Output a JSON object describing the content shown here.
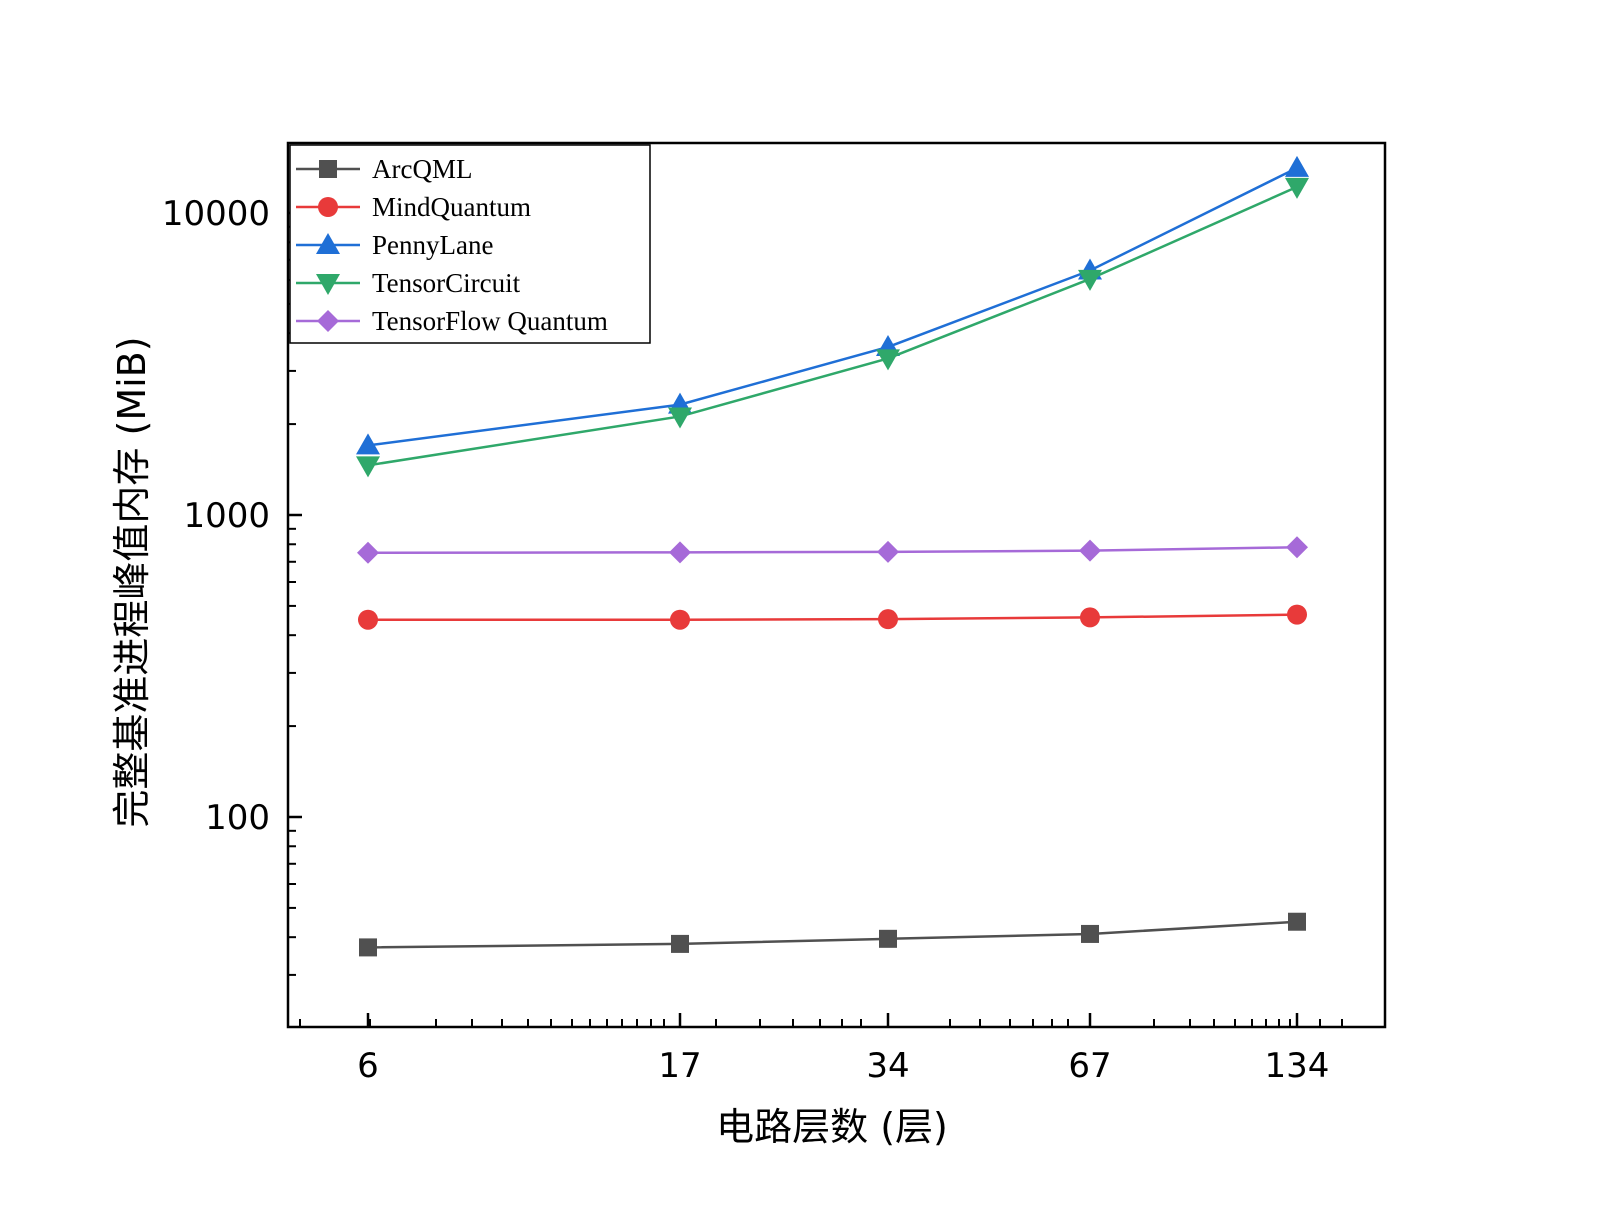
{
  "chart_data": {
    "type": "line",
    "xlabel": "电路层数 (层)",
    "ylabel": "完整基准进程峰值内存 (MiB)",
    "x_scale": "log",
    "y_scale": "log",
    "x_ticks": [
      "6",
      "17",
      "34",
      "67",
      "134"
    ],
    "y_ticks": [
      "100",
      "1000",
      "10000"
    ],
    "ylim": [
      27,
      18000
    ],
    "grid": false,
    "legend_position": "top-left",
    "series": [
      {
        "name": "ArcQML",
        "marker": "square",
        "color": "#505050",
        "values": [
          37,
          38,
          39.5,
          41,
          45
        ]
      },
      {
        "name": "MindQuantum",
        "marker": "circle",
        "color": "#e83a3a",
        "values": [
          450,
          450,
          452,
          458,
          468
        ]
      },
      {
        "name": "PennyLane",
        "marker": "triangle-up",
        "color": "#1f6fd6",
        "values": [
          1700,
          2320,
          3600,
          6450,
          14100
        ]
      },
      {
        "name": "TensorCircuit",
        "marker": "triangle-down",
        "color": "#2fa86a",
        "values": [
          1460,
          2120,
          3300,
          6050,
          12200
        ]
      },
      {
        "name": "TensorFlow Quantum",
        "marker": "diamond",
        "color": "#a66ad8",
        "values": [
          750,
          752,
          755,
          762,
          782
        ]
      }
    ]
  }
}
